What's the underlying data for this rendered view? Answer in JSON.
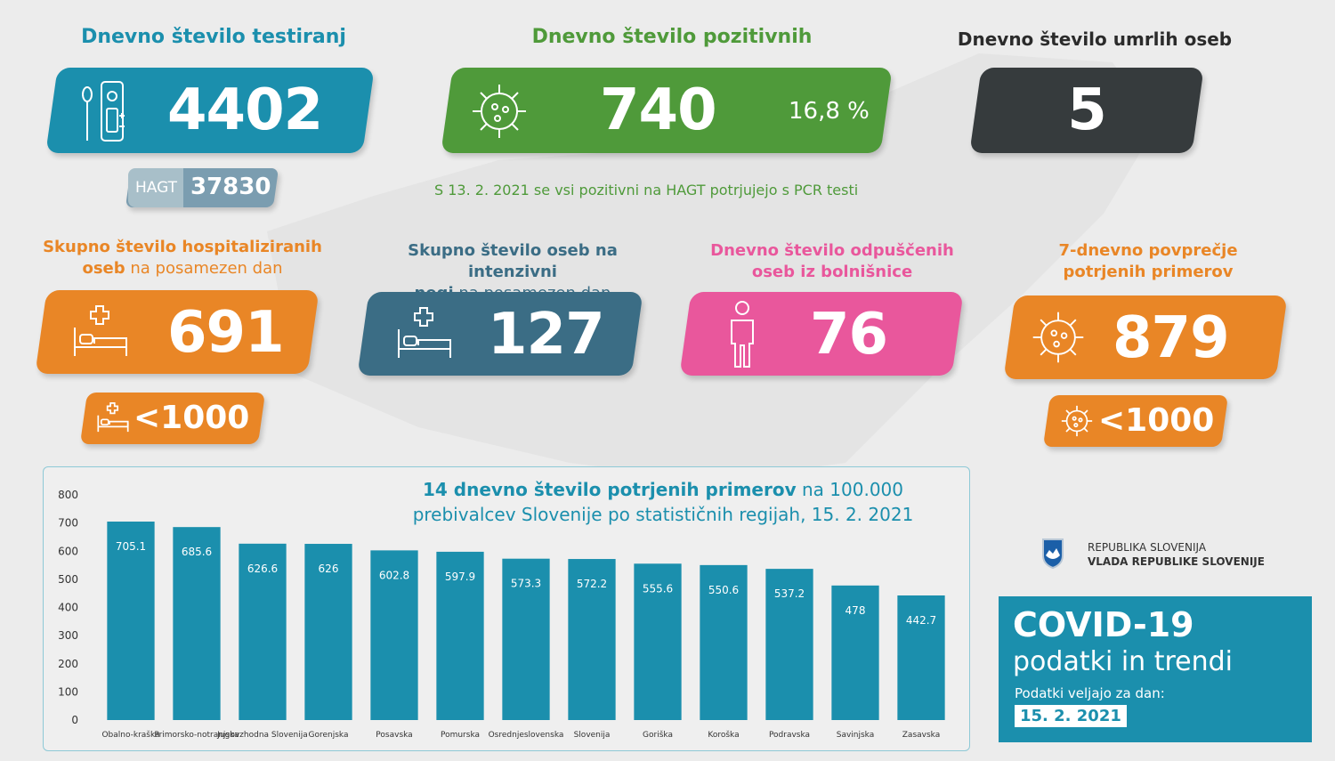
{
  "colors": {
    "blue": "#1b8fad",
    "green": "#4f9a3a",
    "dark": "#363b3d",
    "orange": "#e98626",
    "slate": "#3b6d85",
    "pink": "#e9579c",
    "hagt_light": "#a8bfc9",
    "hagt_dark": "#7b9db0"
  },
  "tests": {
    "heading": "Dnevno število testiranj",
    "value": "4402",
    "hagt_label": "HAGT",
    "hagt_value": "37830"
  },
  "positive": {
    "heading": "Dnevno število pozitivnih",
    "value": "740",
    "percent": "16,8 %",
    "note": "S 13. 2. 2021 se vsi pozitivni na HAGT potrjujejo s PCR testi"
  },
  "deaths": {
    "heading": "Dnevno število umrlih oseb",
    "value": "5"
  },
  "hospital": {
    "heading_bold": "Skupno število hospitaliziranih",
    "heading_bold2": "oseb",
    "heading_rest": " na posamezen dan",
    "value": "691",
    "threshold": "<1000"
  },
  "icu": {
    "heading_bold": "Skupno število oseb na intenzivni",
    "heading_bold2": "negi",
    "heading_rest": " na posamezen dan",
    "value": "127"
  },
  "discharged": {
    "heading_line1": "Dnevno število odpuščenih",
    "heading_line2": "oseb iz bolnišnice",
    "value": "76"
  },
  "avg7": {
    "heading_line1": "7-dnevno povprečje",
    "heading_line2": "potrjenih primerov",
    "value": "879",
    "threshold": "<1000"
  },
  "government": {
    "line1": "REPUBLIKA SLOVENIJA",
    "line2": "VLADA REPUBLIKE SLOVENIJE"
  },
  "covid": {
    "title": "COVID-19",
    "subtitle": "podatki in trendi",
    "valid_label": "Podatki veljajo za dan:",
    "date": "15. 2. 2021"
  },
  "chart_data": {
    "type": "bar",
    "title_bold": "14 dnevno število potrjenih primerov",
    "title_rest": " na 100.000",
    "title_line2": "prebivalcev Slovenije po statističnih regijah, 15. 2. 2021",
    "categories": [
      "Obalno-kraška",
      "Primorsko-notranjska",
      "Jugovzhodna Slovenija",
      "Gorenjska",
      "Posavska",
      "Pomurska",
      "Osrednjeslovenska",
      "Slovenija",
      "Goriška",
      "Koroška",
      "Podravska",
      "Savinjska",
      "Zasavska"
    ],
    "values": [
      705.1,
      685.6,
      626.6,
      626,
      602.8,
      597.9,
      573.3,
      572.2,
      555.6,
      550.6,
      537.2,
      478,
      442.7
    ],
    "value_labels": [
      "705.1",
      "685.6",
      "626.6",
      "626",
      "602.8",
      "597.9",
      "573.3",
      "572.2",
      "555.6",
      "550.6",
      "537.2",
      "478",
      "442.7"
    ],
    "yticks": [
      "0",
      "100",
      "200",
      "300",
      "400",
      "500",
      "600",
      "700",
      "800"
    ],
    "ylim": [
      0,
      800
    ],
    "bar_color": "#1b8fad",
    "grid": false
  }
}
